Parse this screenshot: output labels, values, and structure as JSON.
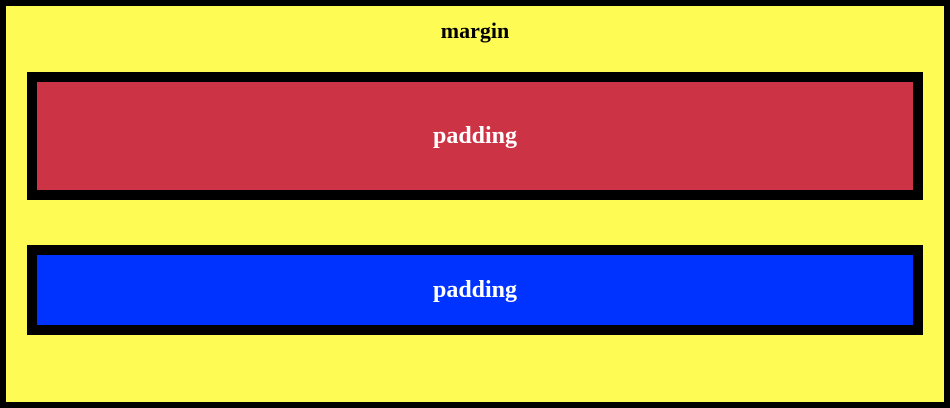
{
  "diagram": {
    "outer_label": "margin",
    "boxes": [
      {
        "label": "padding",
        "color": "#cc3344"
      },
      {
        "label": "padding",
        "color": "#0033ff"
      }
    ],
    "background_color": "#fffb55",
    "border_color": "#000000"
  }
}
